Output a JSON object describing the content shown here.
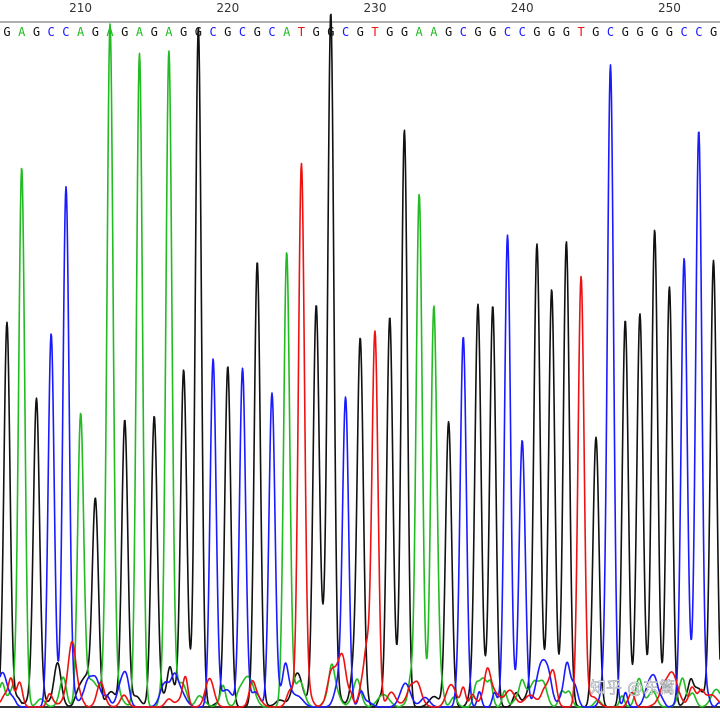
{
  "watermark": "知乎 @东篱",
  "colors": {
    "A": "#22bb22",
    "C": "#1a1aff",
    "G": "#111111",
    "T": "#ee1111"
  },
  "chart_data": {
    "type": "line",
    "title": "",
    "xlabel": "",
    "ylabel": "",
    "position_ticks": [
      210,
      220,
      230,
      240,
      250
    ],
    "sequence": "GAGCCAGAGAGAGGCGCGCATGGCGTGGAAGCGGCCGGGTGCGGGGCCG",
    "peak_heights": [
      0.54,
      0.79,
      0.42,
      0.56,
      0.68,
      0.42,
      0.3,
      1.0,
      0.43,
      0.98,
      0.42,
      0.96,
      0.5,
      1.0,
      0.52,
      0.51,
      0.5,
      0.66,
      0.47,
      0.68,
      0.8,
      0.55,
      0.98,
      0.45,
      0.51,
      0.54,
      0.58,
      0.84,
      0.76,
      0.6,
      0.42,
      0.55,
      0.58,
      0.6,
      0.66,
      0.4,
      0.64,
      0.62,
      0.67,
      0.62,
      0.38,
      0.93,
      0.58,
      0.58,
      0.7,
      0.63,
      0.65,
      0.82,
      0.62
    ]
  }
}
